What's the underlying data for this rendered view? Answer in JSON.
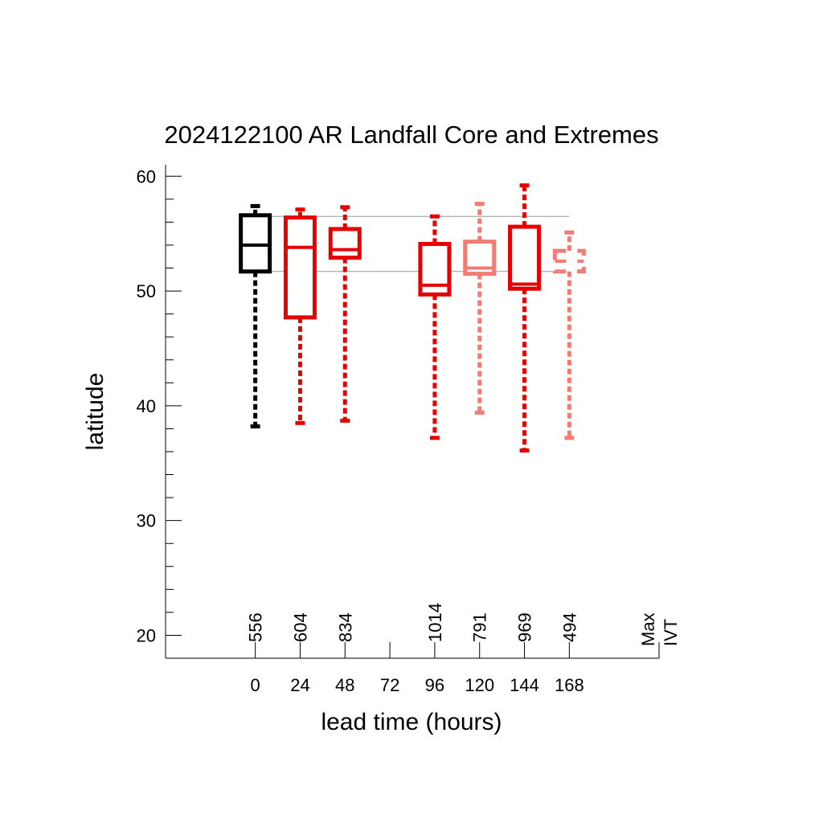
{
  "chart_data": {
    "type": "box",
    "title": "2024122100 AR Landfall Core and Extremes",
    "xlabel": "lead time (hours)",
    "ylabel": "latitude",
    "xlim": [
      -48,
      216
    ],
    "ylim": [
      18,
      61
    ],
    "x_ticks": [
      0,
      24,
      48,
      72,
      96,
      120,
      144,
      168
    ],
    "y_ticks": [
      20,
      30,
      40,
      50,
      60
    ],
    "y_minor_step": 2,
    "reference_lines": [
      56.5,
      51.7
    ],
    "ivt_header": [
      "Max",
      "IVT"
    ],
    "colors": {
      "black": "#000000",
      "red": "#e60000",
      "salmon": "#f07c74",
      "ref_line": "#999999"
    },
    "boxes": [
      {
        "lead": 0,
        "color": "#000000",
        "whisker_low": 38.2,
        "q1": 51.7,
        "median": 54.0,
        "q3": 56.6,
        "whisker_high": 57.4,
        "max_ivt": "556"
      },
      {
        "lead": 24,
        "color": "#e60000",
        "whisker_low": 38.5,
        "q1": 47.7,
        "median": 53.8,
        "q3": 56.4,
        "whisker_high": 57.1,
        "max_ivt": "604"
      },
      {
        "lead": 48,
        "color": "#e60000",
        "whisker_low": 38.7,
        "q1": 52.9,
        "median": 53.6,
        "q3": 55.4,
        "whisker_high": 57.3,
        "max_ivt": "834"
      },
      {
        "lead": 96,
        "color": "#e60000",
        "whisker_low": 37.2,
        "q1": 49.7,
        "median": 50.5,
        "q3": 54.1,
        "whisker_high": 56.5,
        "max_ivt": "1014"
      },
      {
        "lead": 120,
        "color": "#f07c74",
        "whisker_low": 39.4,
        "q1": 51.5,
        "median": 52.0,
        "q3": 54.3,
        "whisker_high": 57.6,
        "max_ivt": "791"
      },
      {
        "lead": 144,
        "color": "#e60000",
        "whisker_low": 36.1,
        "q1": 50.2,
        "median": 50.6,
        "q3": 55.6,
        "whisker_high": 59.2,
        "max_ivt": "969"
      },
      {
        "lead": 168,
        "color": "#f07c74",
        "whisker_low": 37.2,
        "q1": 51.7,
        "median": 52.6,
        "q3": 53.5,
        "whisker_high": 55.1,
        "max_ivt": "494",
        "dashed": true
      }
    ]
  }
}
